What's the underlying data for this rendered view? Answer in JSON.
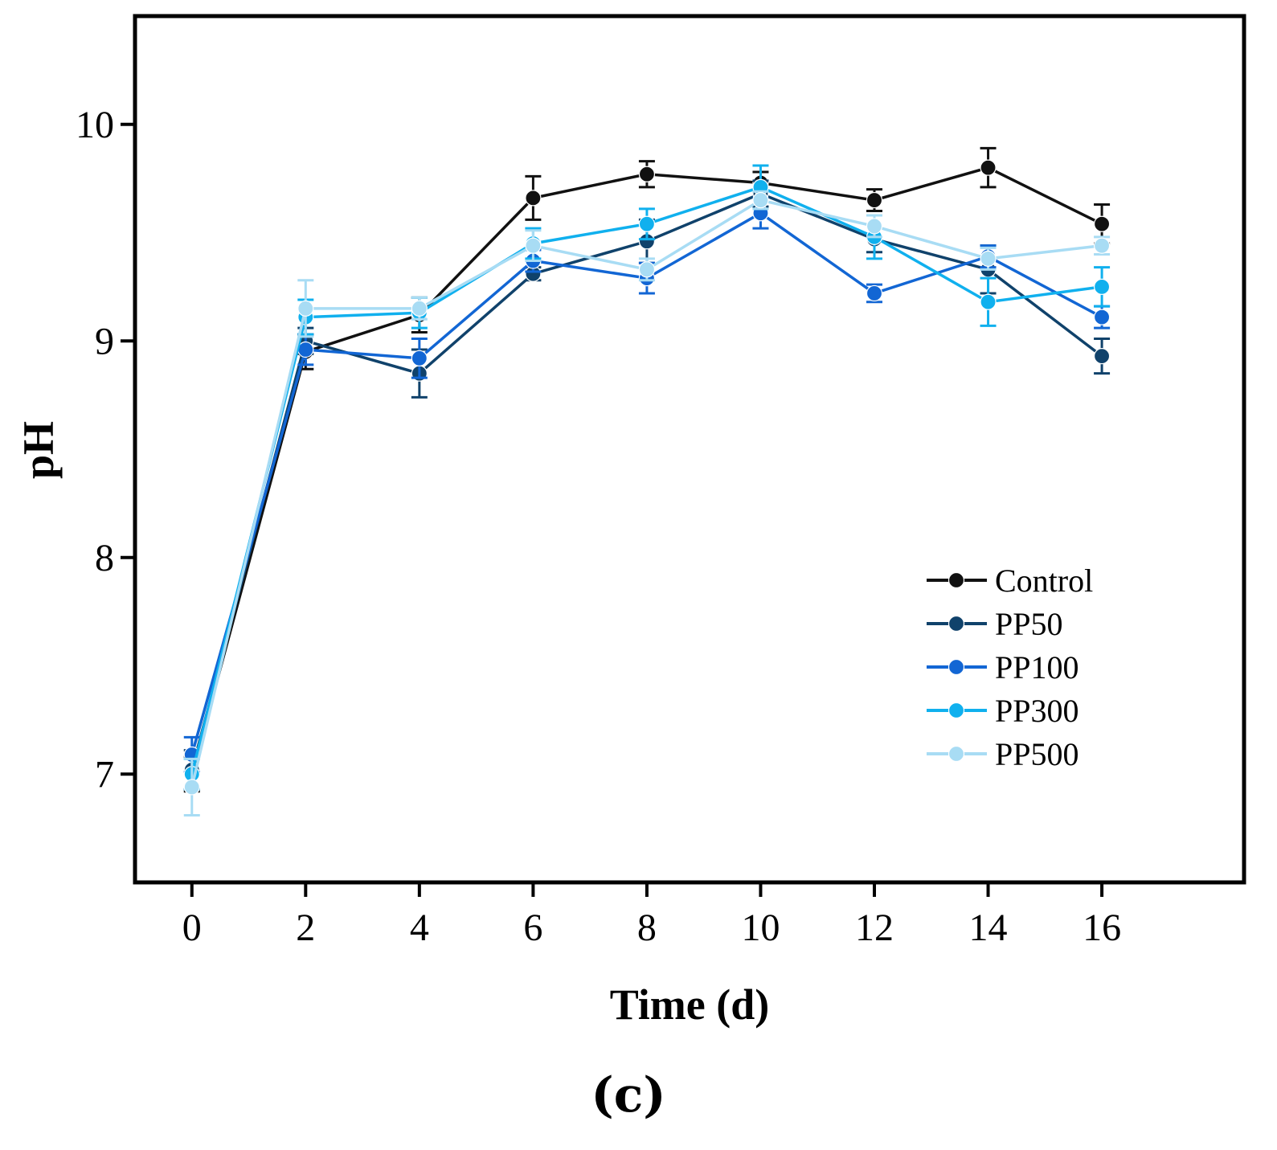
{
  "chart_data": {
    "type": "line",
    "title": "",
    "xlabel": "Time (d)",
    "ylabel": "pH",
    "panel_label": "(c)",
    "xlim": [
      -1,
      18.5
    ],
    "ylim": [
      6.5,
      10.5
    ],
    "xticks": [
      0,
      2,
      4,
      6,
      8,
      10,
      12,
      14,
      16
    ],
    "yticks": [
      7,
      8,
      9,
      10
    ],
    "legend_position": "lower-right",
    "x": [
      0,
      2,
      4,
      6,
      8,
      10,
      12,
      14,
      16
    ],
    "series": [
      {
        "name": "Control",
        "color": "#111111",
        "values": [
          7.0,
          8.95,
          9.12,
          9.66,
          9.77,
          9.73,
          9.65,
          9.8,
          9.54
        ],
        "errors": [
          0.08,
          0.08,
          0.08,
          0.1,
          0.06,
          0.05,
          0.05,
          0.09,
          0.09
        ]
      },
      {
        "name": "PP50",
        "color": "#10426b",
        "values": [
          7.02,
          9.0,
          8.85,
          9.31,
          9.46,
          9.68,
          9.47,
          9.33,
          8.93
        ],
        "errors": [
          0.09,
          0.06,
          0.11,
          0.03,
          0.1,
          0.06,
          0.06,
          0.11,
          0.08
        ]
      },
      {
        "name": "PP100",
        "color": "#1266d4",
        "values": [
          7.09,
          8.96,
          8.92,
          9.37,
          9.29,
          9.59,
          9.22,
          9.39,
          9.11
        ],
        "errors": [
          0.08,
          0.07,
          0.09,
          0.05,
          0.07,
          0.07,
          0.04,
          0.05,
          0.05
        ]
      },
      {
        "name": "PP300",
        "color": "#10b0ee",
        "values": [
          7.0,
          9.11,
          9.13,
          9.45,
          9.54,
          9.71,
          9.48,
          9.18,
          9.25
        ],
        "errors": [
          0.07,
          0.08,
          0.07,
          0.07,
          0.07,
          0.1,
          0.1,
          0.11,
          0.09
        ]
      },
      {
        "name": "PP500",
        "color": "#a8dcf4",
        "values": [
          6.94,
          9.15,
          9.15,
          9.44,
          9.33,
          9.65,
          9.53,
          9.38,
          9.44
        ],
        "errors": [
          0.13,
          0.13,
          0.05,
          0.07,
          0.05,
          0.04,
          0.05,
          0.05,
          0.04
        ]
      }
    ]
  }
}
